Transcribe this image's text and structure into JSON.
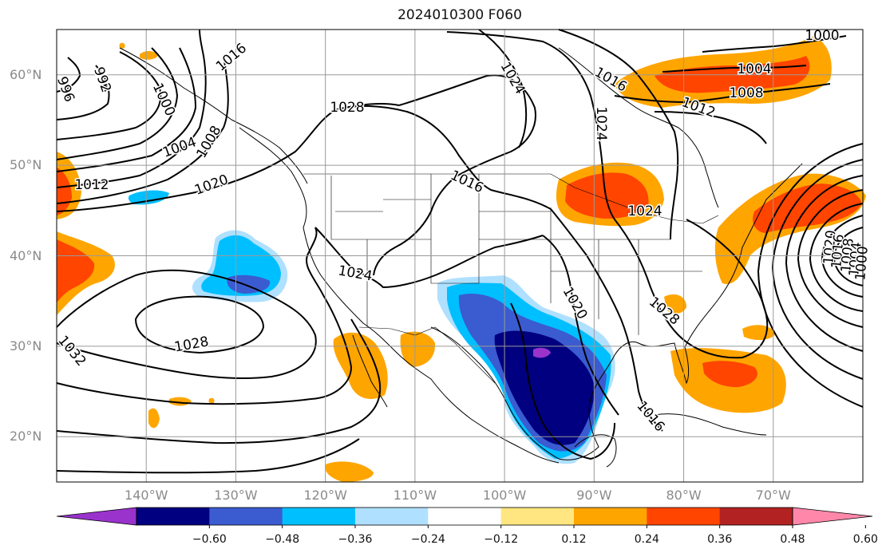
{
  "title": "2024010300 F060",
  "map": {
    "extent": {
      "lon_min": -150,
      "lon_max": -60,
      "lat_min": 15,
      "lat_max": 65
    },
    "lat_ticks": [
      "60°N",
      "50°N",
      "40°N",
      "30°N",
      "20°N"
    ],
    "lon_ticks": [
      "140°W",
      "130°W",
      "120°W",
      "110°W",
      "100°W",
      "90°W",
      "80°W",
      "70°W"
    ],
    "gridlines": true,
    "contour_labels": [
      "992",
      "996",
      "1000",
      "1016",
      "1004",
      "1008",
      "1012",
      "1020",
      "1024",
      "1028",
      "1032",
      "1016",
      "1020",
      "1024",
      "1028",
      "1016",
      "1000",
      "1004",
      "1008",
      "1012",
      "1016",
      "1024",
      "1024",
      "1028",
      "1020",
      "1016",
      "1008",
      "1004",
      "1000",
      "996",
      "992"
    ]
  },
  "colorbar": {
    "ticks": [
      "−0.60",
      "−0.48",
      "−0.36",
      "−0.24",
      "−0.12",
      "0.12",
      "0.24",
      "0.36",
      "0.48",
      "0.60"
    ],
    "colors": [
      "#9933cc",
      "#000080",
      "#3b5bd0",
      "#00bfff",
      "#b0e0ff",
      "#ffffff",
      "#ffe680",
      "#ffa500",
      "#ff4500",
      "#b22222",
      "#ff88aa"
    ]
  }
}
